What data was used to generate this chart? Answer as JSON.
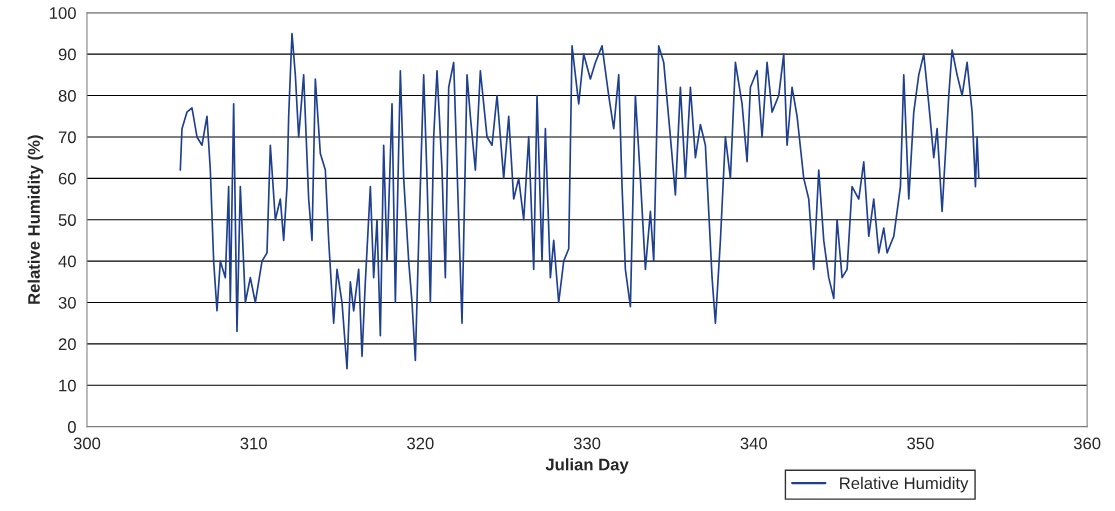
{
  "chart_data": {
    "type": "line",
    "xlabel": "Julian Day",
    "ylabel": "Relative Humidity (%)",
    "xlim": [
      300,
      360
    ],
    "xticks": [
      300,
      310,
      320,
      330,
      340,
      350,
      360
    ],
    "ylim": [
      0,
      100
    ],
    "yticks": [
      0,
      10,
      20,
      30,
      40,
      50,
      60,
      70,
      80,
      90,
      100
    ],
    "grid": "y",
    "legend": "bottom",
    "marker": "none",
    "line_style": "solid",
    "series": [
      {
        "name": "Relative Humidity",
        "color": "#1f3f8f",
        "x": [
          305.6,
          305.7,
          306.0,
          306.3,
          306.6,
          306.9,
          307.2,
          307.4,
          307.6,
          307.8,
          308.0,
          308.3,
          308.5,
          308.6,
          308.8,
          309.0,
          309.2,
          309.5,
          309.8,
          310.1,
          310.5,
          310.8,
          311.0,
          311.3,
          311.6,
          311.8,
          312.0,
          312.1,
          312.3,
          312.5,
          312.7,
          313.0,
          313.3,
          313.5,
          313.7,
          314.0,
          314.3,
          314.5,
          314.8,
          315.0,
          315.3,
          315.6,
          315.8,
          316.0,
          316.3,
          316.5,
          316.7,
          317.0,
          317.2,
          317.4,
          317.6,
          317.8,
          318.0,
          318.3,
          318.5,
          318.8,
          319.0,
          319.3,
          319.5,
          319.7,
          319.9,
          320.2,
          320.4,
          320.6,
          320.8,
          321.0,
          321.3,
          321.5,
          321.7,
          322.0,
          322.3,
          322.5,
          322.8,
          323.0,
          323.3,
          323.6,
          324.0,
          324.3,
          324.6,
          325.0,
          325.3,
          325.6,
          325.9,
          326.2,
          326.5,
          326.8,
          327.0,
          327.3,
          327.5,
          327.8,
          328.0,
          328.3,
          328.6,
          328.9,
          329.1,
          329.5,
          329.8,
          330.2,
          330.5,
          330.9,
          331.3,
          331.6,
          331.9,
          332.1,
          332.3,
          332.6,
          332.9,
          333.2,
          333.5,
          333.8,
          334.0,
          334.3,
          334.6,
          335.0,
          335.3,
          335.6,
          335.9,
          336.2,
          336.5,
          336.8,
          337.1,
          337.5,
          337.7,
          338.0,
          338.3,
          338.6,
          338.9,
          339.3,
          339.6,
          339.8,
          340.2,
          340.5,
          340.8,
          341.1,
          341.5,
          341.8,
          342.0,
          342.3,
          342.6,
          343.0,
          343.3,
          343.6,
          343.9,
          344.2,
          344.5,
          344.8,
          345.0,
          345.3,
          345.6,
          345.9,
          346.3,
          346.6,
          346.9,
          347.2,
          347.5,
          347.8,
          348.0,
          348.4,
          348.8,
          349.0,
          349.3,
          349.6,
          349.9,
          350.2,
          350.5,
          350.8,
          351.0,
          351.3,
          351.7,
          351.9,
          352.2,
          352.5,
          352.8,
          353.1,
          353.3,
          353.4,
          353.5
        ],
        "values": [
          62,
          72,
          76,
          77,
          70,
          68,
          75,
          62,
          40,
          28,
          40,
          36,
          58,
          30,
          78,
          23,
          58,
          30,
          36,
          30,
          40,
          42,
          68,
          50,
          55,
          45,
          58,
          75,
          95,
          85,
          70,
          85,
          55,
          45,
          84,
          66,
          62,
          45,
          25,
          38,
          30,
          14,
          35,
          28,
          38,
          17,
          35,
          58,
          36,
          50,
          22,
          68,
          40,
          78,
          30,
          86,
          60,
          40,
          30,
          16,
          45,
          85,
          60,
          30,
          70,
          86,
          62,
          36,
          82,
          88,
          50,
          25,
          85,
          75,
          62,
          86,
          70,
          68,
          80,
          60,
          75,
          55,
          60,
          50,
          70,
          38,
          80,
          40,
          72,
          36,
          45,
          30,
          40,
          43,
          92,
          78,
          90,
          84,
          88,
          92,
          80,
          72,
          85,
          58,
          38,
          29,
          80,
          60,
          38,
          52,
          40,
          92,
          88,
          70,
          56,
          82,
          60,
          82,
          65,
          73,
          68,
          36,
          25,
          45,
          70,
          60,
          88,
          78,
          64,
          82,
          86,
          70,
          88,
          76,
          80,
          90,
          68,
          82,
          75,
          60,
          55,
          38,
          62,
          45,
          36,
          31,
          50,
          36,
          38,
          58,
          55,
          64,
          46,
          55,
          42,
          48,
          42,
          46,
          58,
          85,
          55,
          76,
          85,
          90,
          78,
          65,
          72,
          52,
          80,
          91,
          85,
          80,
          88,
          76,
          58,
          70,
          60
        ]
      }
    ]
  }
}
